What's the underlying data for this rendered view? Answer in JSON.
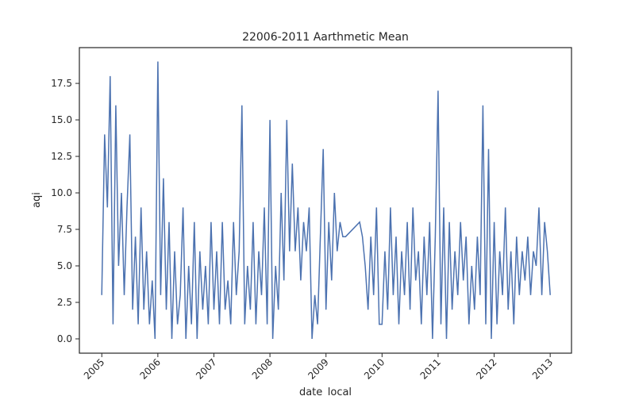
{
  "chart_data": {
    "type": "line",
    "title": "22006-2011 Aarthmetic Mean",
    "xlabel": "date_local",
    "ylabel": "aqi",
    "x": [
      2005,
      2005.05,
      2005.1,
      2005.15,
      2005.2,
      2005.25,
      2005.3,
      2005.35,
      2005.4,
      2005.45,
      2005.5,
      2005.55,
      2005.6,
      2005.65,
      2005.7,
      2005.75,
      2005.8,
      2005.85,
      2005.9,
      2005.95,
      2006,
      2006.05,
      2006.1,
      2006.15,
      2006.2,
      2006.25,
      2006.3,
      2006.35,
      2006.4,
      2006.45,
      2006.5,
      2006.55,
      2006.6,
      2006.65,
      2006.7,
      2006.75,
      2006.8,
      2006.85,
      2006.9,
      2006.95,
      2007,
      2007.05,
      2007.1,
      2007.15,
      2007.2,
      2007.25,
      2007.3,
      2007.35,
      2007.4,
      2007.45,
      2007.5,
      2007.55,
      2007.6,
      2007.65,
      2007.7,
      2007.75,
      2007.8,
      2007.85,
      2007.9,
      2007.95,
      2008,
      2008.05,
      2008.1,
      2008.15,
      2008.2,
      2008.25,
      2008.3,
      2008.35,
      2008.4,
      2008.45,
      2008.5,
      2008.55,
      2008.6,
      2008.65,
      2008.7,
      2008.75,
      2008.8,
      2008.85,
      2008.9,
      2008.95,
      2009,
      2009.05,
      2009.1,
      2009.15,
      2009.2,
      2009.25,
      2009.3,
      2009.35,
      2009.6,
      2009.65,
      2009.7,
      2009.75,
      2009.8,
      2009.85,
      2009.9,
      2009.95,
      2010,
      2010.05,
      2010.1,
      2010.15,
      2010.2,
      2010.25,
      2010.3,
      2010.35,
      2010.4,
      2010.45,
      2010.5,
      2010.55,
      2010.6,
      2010.65,
      2010.7,
      2010.75,
      2010.8,
      2010.85,
      2010.9,
      2010.95,
      2011,
      2011.05,
      2011.1,
      2011.15,
      2011.2,
      2011.25,
      2011.3,
      2011.35,
      2011.4,
      2011.45,
      2011.5,
      2011.55,
      2011.6,
      2011.65,
      2011.7,
      2011.75,
      2011.8,
      2011.85,
      2011.9,
      2011.95,
      2012,
      2012.05,
      2012.1,
      2012.15,
      2012.2,
      2012.25,
      2012.3,
      2012.35,
      2012.4,
      2012.45,
      2012.5,
      2012.55,
      2012.6,
      2012.65,
      2012.7,
      2012.75,
      2012.8,
      2012.85,
      2012.9,
      2012.95,
      2013
    ],
    "series": [
      {
        "name": "aqi",
        "color": "#4c72b0",
        "values": [
          3,
          14,
          9,
          18,
          1,
          16,
          5,
          10,
          3,
          9,
          14,
          2,
          7,
          1,
          9,
          2,
          6,
          1,
          4,
          0,
          19,
          3,
          11,
          2,
          8,
          0,
          6,
          1,
          3,
          9,
          0,
          5,
          1,
          8,
          0,
          6,
          2,
          5,
          1,
          8,
          2,
          6,
          1,
          8,
          2,
          4,
          1,
          8,
          3,
          6,
          16,
          1,
          5,
          2,
          8,
          1,
          6,
          3,
          9,
          1,
          15,
          0,
          5,
          2,
          10,
          4,
          15,
          6,
          12,
          6,
          9,
          4,
          8,
          6,
          9,
          0,
          3,
          1,
          7,
          13,
          2,
          8,
          4,
          10,
          6,
          8,
          7,
          7,
          8,
          7,
          5,
          2,
          7,
          3,
          9,
          1,
          1,
          6,
          2,
          9,
          3,
          7,
          1,
          6,
          3,
          8,
          2,
          9,
          4,
          6,
          1,
          7,
          3,
          8,
          0,
          7,
          17,
          1,
          9,
          0,
          8,
          2,
          6,
          3,
          8,
          4,
          7,
          1,
          5,
          2,
          7,
          3,
          16,
          1,
          13,
          0,
          8,
          1,
          6,
          3,
          9,
          2,
          6,
          1,
          7,
          3,
          6,
          4,
          7,
          3,
          6,
          5,
          9,
          3,
          8,
          6,
          3
        ]
      }
    ],
    "xlim": [
      2004.6,
      2013.38
    ],
    "xticks": [
      2005,
      2006,
      2007,
      2008,
      2009,
      2010,
      2011,
      2012,
      2013
    ],
    "ylim": [
      -0.98,
      19.95
    ],
    "yticks": [
      {
        "value": 0,
        "label": "0.0"
      },
      2.5,
      {
        "value": 5,
        "label": "5.0"
      },
      7.5,
      {
        "value": 10,
        "label": "10.0"
      },
      12.5,
      {
        "value": 15,
        "label": "15.0"
      },
      17.5
    ]
  }
}
